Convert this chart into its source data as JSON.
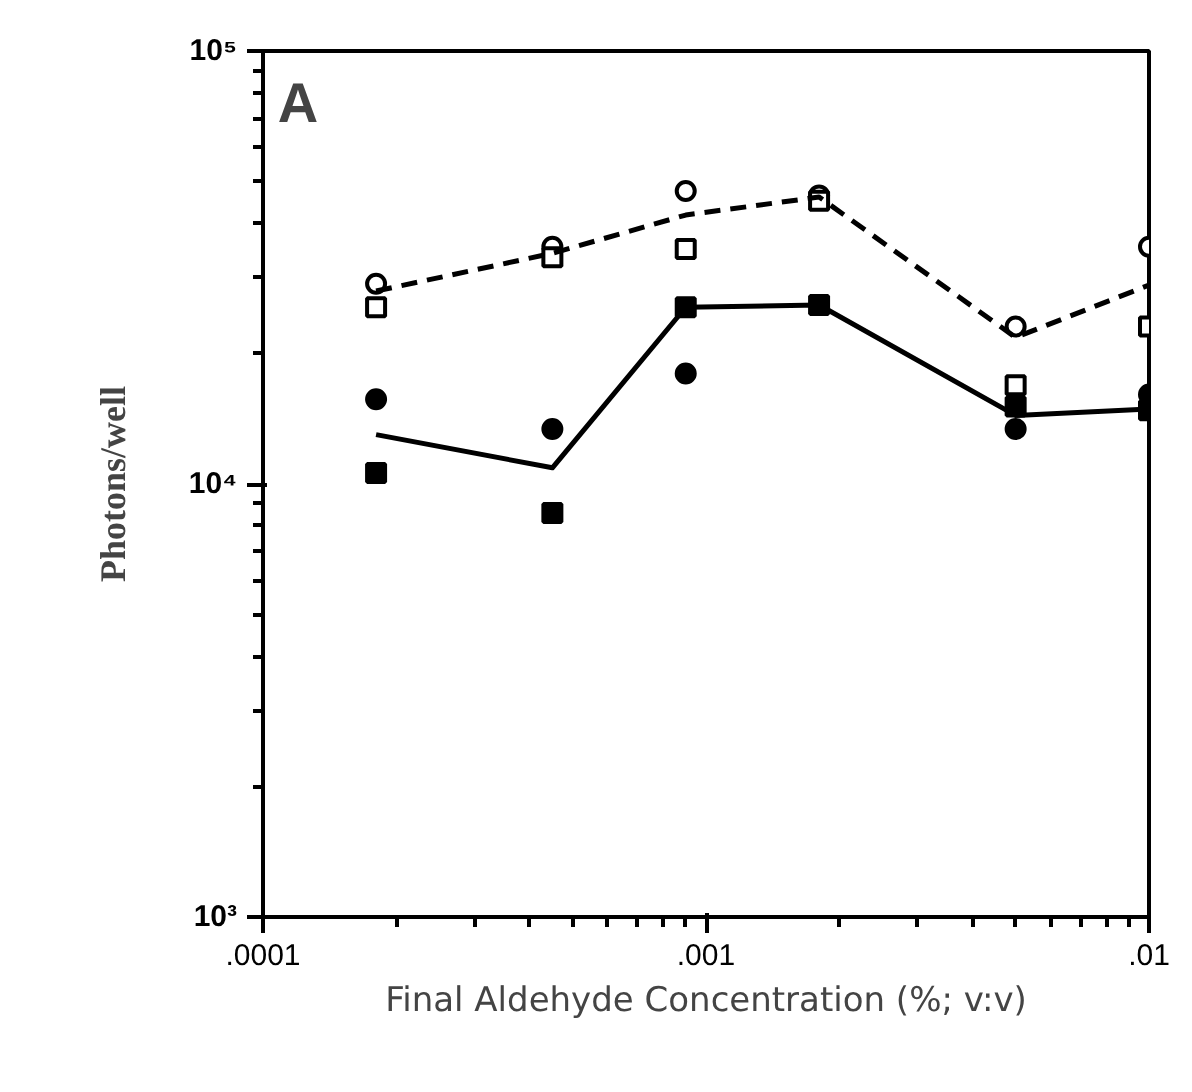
{
  "chart_data": {
    "type": "scatter",
    "xlabel": "Final Aldehyde Concentration (%; v:v)",
    "ylabel": "Photons/well",
    "annotations": [
      "A"
    ],
    "x": [
      0.00018,
      0.00045,
      0.0009,
      0.0018,
      0.005,
      0.01
    ],
    "log": "xy",
    "xlim": [
      0.0001,
      0.01
    ],
    "ylim": [
      1000,
      100000
    ],
    "xticks": [
      {
        "value": 0.0001,
        "label": ".0001"
      },
      {
        "value": 0.001,
        "label": ".001"
      },
      {
        "value": 0.01,
        "label": ".01"
      }
    ],
    "yticks": [
      {
        "value": 1000,
        "label": "10³"
      },
      {
        "value": 10000,
        "label": "10⁴"
      },
      {
        "value": 100000,
        "label": "10⁵"
      }
    ],
    "grid": false,
    "series": [
      {
        "marker": "circle",
        "color": "#ffffff",
        "values": [
          29000,
          35300,
          47500,
          46400,
          23100,
          35300
        ]
      },
      {
        "marker": "square",
        "color": "#ffffff",
        "values": [
          25600,
          33400,
          34900,
          45100,
          16900,
          23100
        ]
      },
      {
        "type": "line",
        "marker": "none",
        "line_style": "dashed",
        "color": "#000000",
        "values": [
          27900,
          34100,
          41800,
          46000,
          21800,
          28800
        ]
      },
      {
        "marker": "circle",
        "color": "#000000",
        "values": [
          15700,
          13400,
          18000,
          null,
          13400,
          16100
        ]
      },
      {
        "marker": "square",
        "color": "#000000",
        "values": [
          10600,
          8570,
          25600,
          25900,
          15100,
          14800
        ]
      },
      {
        "type": "line",
        "marker": "none",
        "line_style": "solid",
        "color": "#000000",
        "values": [
          13000,
          10900,
          25600,
          25900,
          14400,
          14900
        ]
      }
    ]
  }
}
